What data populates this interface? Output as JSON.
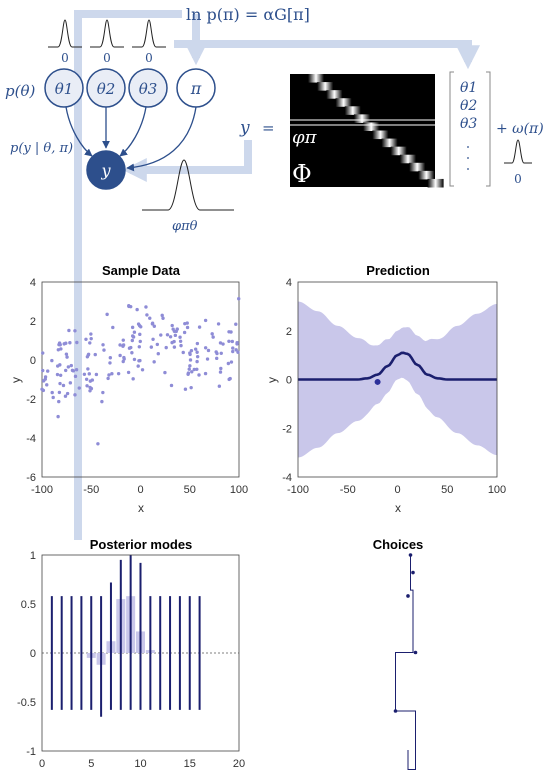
{
  "formula": {
    "top": "ln p(π) = αG[π]",
    "p_theta": "p(θ)",
    "p_y_given": "p(y | θ, π)",
    "node_theta1": "θ1",
    "node_theta2": "θ2",
    "node_theta3": "θ3",
    "node_pi": "π",
    "node_y": "y",
    "phi_theta": "φπθ",
    "y_eq": "y",
    "equals": "=",
    "phi_pi": "φπ",
    "Phi": "Φ",
    "vec_theta1": "θ1",
    "vec_theta2": "θ2",
    "vec_theta3": "θ3",
    "plus_omega": "+ ω(π)",
    "zero": "0"
  },
  "colors": {
    "accent": "#2d4f8c",
    "node_fill": "#e9edf6",
    "arrow_light": "#cdd8ec",
    "scatter": "#8e8cd6",
    "band": "#c9c7ea",
    "line_dark": "#1b1f6e"
  },
  "chart_data": [
    {
      "type": "scatter",
      "title": "Sample Data",
      "xlabel": "x",
      "ylabel": "y",
      "xlim": [
        -100,
        100
      ],
      "ylim": [
        -6,
        4
      ],
      "xticks": [
        -100,
        -50,
        0,
        50,
        100
      ],
      "yticks": [
        -6,
        -4,
        -2,
        0,
        2,
        4
      ],
      "grid": false,
      "points_description": "approx. 200 noisy samples around a bump near x≈10"
    },
    {
      "type": "line",
      "title": "Prediction",
      "xlabel": "x",
      "ylabel": "y",
      "xlim": [
        -100,
        100
      ],
      "ylim": [
        -4,
        4
      ],
      "xticks": [
        -100,
        -50,
        0,
        50,
        100
      ],
      "yticks": [
        -4,
        -2,
        0,
        2,
        4
      ],
      "series": [
        {
          "mean": {
            "x": [
              -100,
              -80,
              -60,
              -40,
              -30,
              -20,
              -10,
              0,
              5,
              10,
              20,
              30,
              40,
              50,
              60,
              80,
              100
            ],
            "y": [
              0,
              0,
              0,
              0,
              0.05,
              0.2,
              0.55,
              1.0,
              1.1,
              1.05,
              0.6,
              0.2,
              0.05,
              0,
              0,
              0,
              0
            ]
          },
          "band_half_width": {
            "x": [
              -100,
              -80,
              -60,
              -40,
              -20,
              0,
              20,
              40,
              60,
              80,
              100
            ],
            "y": [
              3.2,
              2.8,
              2.2,
              1.7,
              1.2,
              1.0,
              1.2,
              1.6,
              2.2,
              2.7,
              3.1
            ]
          }
        }
      ],
      "marker": {
        "x": -20,
        "y": -0.1
      }
    },
    {
      "type": "bar",
      "title": "Posterior modes",
      "xlim": [
        0,
        20
      ],
      "ylim": [
        -1,
        1
      ],
      "xticks": [
        0,
        5,
        10,
        15,
        20
      ],
      "yticks": [
        -1,
        -0.5,
        0,
        0.5,
        1
      ],
      "stems": {
        "x": [
          1,
          2,
          3,
          4,
          5,
          6,
          7,
          8,
          9,
          10,
          11,
          12,
          13,
          14,
          15,
          16
        ],
        "top": [
          0.58,
          0.58,
          0.58,
          0.58,
          0.58,
          0.58,
          0.72,
          0.95,
          1.0,
          0.92,
          0.58,
          0.58,
          0.58,
          0.58,
          0.58,
          0.58
        ],
        "bottom": [
          -0.58,
          -0.58,
          -0.58,
          -0.58,
          -0.58,
          -0.65,
          -0.58,
          -0.58,
          -0.58,
          -0.58,
          -0.58,
          -0.58,
          -0.58,
          -0.58,
          -0.58,
          -0.58
        ]
      },
      "bars": {
        "x": [
          5,
          6,
          7,
          8,
          9,
          10,
          11
        ],
        "values": [
          -0.05,
          -0.12,
          0.12,
          0.55,
          0.58,
          0.22,
          0.03
        ]
      }
    },
    {
      "type": "line",
      "title": "Choices",
      "steps": [
        {
          "x": 0.2,
          "y": 0
        },
        {
          "x": 0.2,
          "y": -0.1
        },
        {
          "x": 0.35,
          "y": -0.1
        },
        {
          "x": 0.35,
          "y": 0.2
        },
        {
          "x": -0.05,
          "y": 0.2
        },
        {
          "x": -0.05,
          "y": 0.5
        },
        {
          "x": 0.3,
          "y": 0.5
        },
        {
          "x": 0.3,
          "y": 0.82
        },
        {
          "x": 0.25,
          "y": 0.82
        },
        {
          "x": 0.25,
          "y": 1.0
        }
      ],
      "markers": [
        {
          "x": -0.05,
          "y": 0.2
        },
        {
          "x": 0.35,
          "y": 0.5
        },
        {
          "x": 0.2,
          "y": 0.79
        },
        {
          "x": 0.3,
          "y": 0.91
        },
        {
          "x": 0.25,
          "y": 1.0
        }
      ]
    }
  ]
}
